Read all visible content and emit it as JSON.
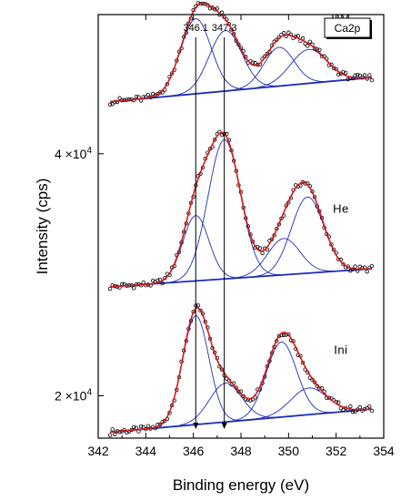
{
  "chart_data": {
    "type": "line",
    "badge": "Ca2p",
    "xlabel": "Binding energy (eV)",
    "ylabel": "Intensity (cps)",
    "xlim": [
      342,
      354
    ],
    "ylim": [
      16500,
      51500
    ],
    "x_ticks": [
      342,
      344,
      346,
      348,
      350,
      352,
      354
    ],
    "y_ticks": [
      {
        "value": 20000,
        "mantissa": "2",
        "power": "4"
      },
      {
        "value": 40000,
        "mantissa": "4",
        "power": "4"
      }
    ],
    "vertical_markers": [
      {
        "x": 346.1,
        "label": "346.1"
      },
      {
        "x": 347.3,
        "label": "347.3"
      }
    ],
    "x_range": [
      342.5,
      353.5
    ],
    "colors": {
      "envelope": "#d81b1b",
      "component": "#1f2fb8",
      "baseline": "#1a23c8",
      "data_marker": "#000000"
    },
    "series": [
      {
        "name": "Ini",
        "baseline": {
          "left": 17000,
          "right": 18900
        },
        "components": [
          {
            "center": 346.1,
            "height": 9000,
            "fwhm": 1.3
          },
          {
            "center": 347.35,
            "height": 3200,
            "fwhm": 1.6
          },
          {
            "center": 349.7,
            "height": 6200,
            "fwhm": 1.5
          },
          {
            "center": 350.85,
            "height": 2200,
            "fwhm": 1.8
          }
        ]
      },
      {
        "name": "He",
        "baseline": {
          "left": 29000,
          "right": 30500
        },
        "components": [
          {
            "center": 346.1,
            "height": 5400,
            "fwhm": 1.3
          },
          {
            "center": 347.3,
            "height": 11500,
            "fwhm": 1.6
          },
          {
            "center": 349.8,
            "height": 3000,
            "fwhm": 1.6
          },
          {
            "center": 350.8,
            "height": 6300,
            "fwhm": 1.6
          }
        ]
      },
      {
        "name": "RM",
        "baseline": {
          "left": 44300,
          "right": 46300
        },
        "components": [
          {
            "center": 346.1,
            "height": 6200,
            "fwhm": 1.5
          },
          {
            "center": 347.35,
            "height": 5000,
            "fwhm": 1.6
          },
          {
            "center": 349.6,
            "height": 3200,
            "fwhm": 1.5
          },
          {
            "center": 350.85,
            "height": 2800,
            "fwhm": 1.8
          }
        ]
      }
    ]
  }
}
